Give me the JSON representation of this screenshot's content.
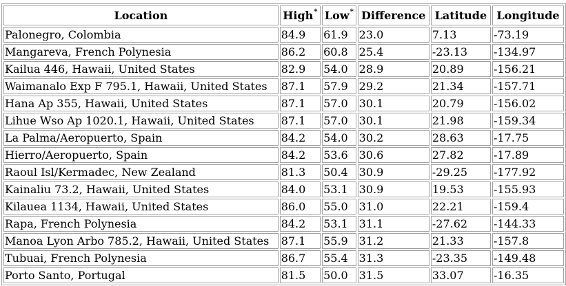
{
  "table": {
    "headers": {
      "location": "Location",
      "high": "High",
      "high_mark": "*",
      "low": "Low",
      "low_mark": "*",
      "difference": "Difference",
      "latitude": "Latitude",
      "longitude": "Longitude"
    },
    "rows": [
      {
        "location": "Palonegro, Colombia",
        "high": "84.9",
        "low": "61.9",
        "difference": "23.0",
        "latitude": "7.13",
        "longitude": "-73.19"
      },
      {
        "location": "Mangareva, French Polynesia",
        "high": "86.2",
        "low": "60.8",
        "difference": "25.4",
        "latitude": "-23.13",
        "longitude": "-134.97"
      },
      {
        "location": "Kailua 446, Hawaii, United States",
        "high": "82.9",
        "low": "54.0",
        "difference": "28.9",
        "latitude": "20.89",
        "longitude": "-156.21"
      },
      {
        "location": "Waimanalo Exp F 795.1, Hawaii, United States",
        "high": "87.1",
        "low": "57.9",
        "difference": "29.2",
        "latitude": "21.34",
        "longitude": "-157.71"
      },
      {
        "location": "Hana Ap 355, Hawaii, United States",
        "high": "87.1",
        "low": "57.0",
        "difference": "30.1",
        "latitude": "20.79",
        "longitude": "-156.02"
      },
      {
        "location": "Lihue Wso Ap 1020.1, Hawaii, United States",
        "high": "87.1",
        "low": "57.0",
        "difference": "30.1",
        "latitude": "21.98",
        "longitude": "-159.34"
      },
      {
        "location": "La Palma/Aeropuerto, Spain",
        "high": "84.2",
        "low": "54.0",
        "difference": "30.2",
        "latitude": "28.63",
        "longitude": "-17.75"
      },
      {
        "location": "Hierro/Aeropuerto, Spain",
        "high": "84.2",
        "low": "53.6",
        "difference": "30.6",
        "latitude": "27.82",
        "longitude": "-17.89"
      },
      {
        "location": "Raoul Isl/Kermadec, New Zealand",
        "high": "81.3",
        "low": "50.4",
        "difference": "30.9",
        "latitude": "-29.25",
        "longitude": "-177.92"
      },
      {
        "location": "Kainaliu 73.2, Hawaii, United States",
        "high": "84.0",
        "low": "53.1",
        "difference": "30.9",
        "latitude": "19.53",
        "longitude": "-155.93"
      },
      {
        "location": "Kilauea 1134, Hawaii, United States",
        "high": "86.0",
        "low": "55.0",
        "difference": "31.0",
        "latitude": "22.21",
        "longitude": "-159.4"
      },
      {
        "location": "Rapa, French Polynesia",
        "high": "84.2",
        "low": "53.1",
        "difference": "31.1",
        "latitude": "-27.62",
        "longitude": "-144.33"
      },
      {
        "location": "Manoa Lyon Arbo 785.2, Hawaii, United States",
        "high": "87.1",
        "low": "55.9",
        "difference": "31.2",
        "latitude": "21.33",
        "longitude": "-157.8"
      },
      {
        "location": "Tubuai, French Polynesia",
        "high": "86.7",
        "low": "55.4",
        "difference": "31.3",
        "latitude": "-23.35",
        "longitude": "-149.48"
      },
      {
        "location": "Porto Santo, Portugal",
        "high": "81.5",
        "low": "50.0",
        "difference": "31.5",
        "latitude": "33.07",
        "longitude": "-16.35"
      }
    ]
  }
}
